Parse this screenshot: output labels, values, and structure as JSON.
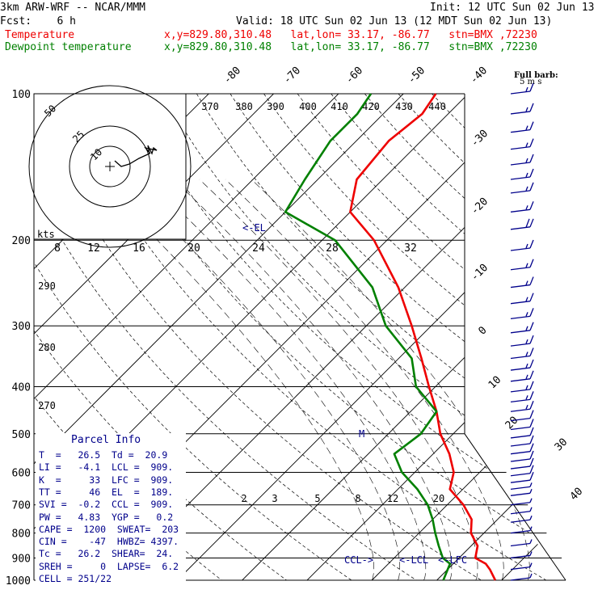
{
  "header": {
    "model": "3km ARW-WRF -- NCAR/MMM",
    "init": "Init: 12 UTC Sun 02 Jun 13",
    "fcst": "Fcst:    6 h",
    "valid": "Valid: 18 UTC Sun 02 Jun 13 (12 MDT Sun 02 Jun 13)",
    "temp_label": "Temperature",
    "dew_label": "Dewpoint temperature",
    "loc": "x,y=829.80,310.48   lat,lon= 33.17, -86.77   stn=BMX ,72230"
  },
  "colors": {
    "temperature": "#ee0000",
    "dewpoint": "#008000",
    "wind": "#00008b",
    "grid": "#000000"
  },
  "barb_legend": {
    "title": "Full barb:",
    "units": "5 m s"
  },
  "hodograph": {
    "units": "kts",
    "ring_labels": [
      "50",
      "25",
      "10"
    ]
  },
  "parcel_info": {
    "title": "Parcel Info",
    "rows": [
      "T  =   26.5  Td =  20.9",
      "LI =   -4.1  LCL =  909.",
      "K  =     33  LFC =  909.",
      "TT =     46  EL  =  189.",
      "SVI =  -0.2  CCL =  909.",
      "PW =   4.83  YGP =   0.2",
      "CAPE =  1200  SWEAT=  203",
      "CIN =    -47  HWBZ= 4397.",
      "Tc =   26.2  SHEAR=  24.",
      "SREH =     0  LAPSE=  6.2",
      "CELL = 251/22"
    ]
  },
  "chart_data": {
    "type": "line",
    "title": "",
    "y_axis": "pressure (hPa), log scale",
    "pressure_levels": [
      100,
      200,
      300,
      400,
      500,
      600,
      700,
      800,
      900,
      1000
    ],
    "ylim": [
      1000,
      100
    ],
    "isotherm_labels": [
      -80,
      -70,
      -60,
      -50,
      -40,
      -30,
      -20,
      -10,
      0,
      10,
      20,
      30,
      40
    ],
    "theta_labels": [
      370,
      380,
      390,
      400,
      410,
      420,
      430,
      440
    ],
    "theta_axis_labels": [
      290,
      280,
      270
    ],
    "hodograph_speed_labels": [
      8,
      12,
      16,
      20,
      24,
      28,
      32
    ],
    "mixing_ratio_labels": [
      2,
      3,
      5,
      8,
      12,
      20
    ],
    "annotations": [
      "<-EL",
      "CCL->",
      "<-LCL",
      "<-LFC",
      "M"
    ],
    "series": [
      {
        "name": "Temperature",
        "points": [
          [
            1000,
            29
          ],
          [
            950,
            26.5
          ],
          [
            925,
            25
          ],
          [
            900,
            22.5
          ],
          [
            850,
            21
          ],
          [
            800,
            18
          ],
          [
            750,
            16
          ],
          [
            700,
            12.5
          ],
          [
            650,
            8
          ],
          [
            600,
            6
          ],
          [
            550,
            2.5
          ],
          [
            500,
            -2
          ],
          [
            450,
            -6
          ],
          [
            400,
            -11
          ],
          [
            350,
            -16.5
          ],
          [
            300,
            -23
          ],
          [
            250,
            -31
          ],
          [
            200,
            -42
          ],
          [
            175,
            -50
          ],
          [
            150,
            -54
          ],
          [
            125,
            -55
          ],
          [
            110,
            -54
          ],
          [
            100,
            -55
          ]
        ]
      },
      {
        "name": "Dewpoint temperature",
        "points": [
          [
            1000,
            21
          ],
          [
            950,
            20
          ],
          [
            925,
            19.5
          ],
          [
            900,
            17.5
          ],
          [
            850,
            15
          ],
          [
            800,
            12.5
          ],
          [
            750,
            10
          ],
          [
            700,
            7
          ],
          [
            650,
            3
          ],
          [
            600,
            -2
          ],
          [
            550,
            -6
          ],
          [
            500,
            -5
          ],
          [
            450,
            -6
          ],
          [
            400,
            -13
          ],
          [
            350,
            -18
          ],
          [
            300,
            -27
          ],
          [
            250,
            -35
          ],
          [
            200,
            -48
          ],
          [
            175,
            -60
          ],
          [
            150,
            -62
          ],
          [
            125,
            -64
          ],
          [
            110,
            -64
          ],
          [
            100,
            -65
          ]
        ]
      }
    ],
    "wind_barbs_kt": [
      [
        100,
        15
      ],
      [
        110,
        15
      ],
      [
        120,
        15
      ],
      [
        130,
        15
      ],
      [
        140,
        15
      ],
      [
        150,
        15
      ],
      [
        160,
        15
      ],
      [
        175,
        15
      ],
      [
        190,
        20
      ],
      [
        210,
        15
      ],
      [
        230,
        15
      ],
      [
        250,
        15
      ],
      [
        270,
        15
      ],
      [
        290,
        15
      ],
      [
        310,
        15
      ],
      [
        330,
        15
      ],
      [
        350,
        15
      ],
      [
        370,
        15
      ],
      [
        390,
        15
      ],
      [
        410,
        15
      ],
      [
        430,
        15
      ],
      [
        450,
        15
      ],
      [
        470,
        10
      ],
      [
        490,
        10
      ],
      [
        510,
        10
      ],
      [
        530,
        10
      ],
      [
        550,
        10
      ],
      [
        570,
        10
      ],
      [
        590,
        10
      ],
      [
        610,
        10
      ],
      [
        630,
        10
      ],
      [
        650,
        5
      ],
      [
        670,
        5
      ],
      [
        700,
        5
      ],
      [
        730,
        5
      ],
      [
        760,
        5
      ],
      [
        800,
        5
      ],
      [
        850,
        5
      ],
      [
        900,
        5
      ],
      [
        950,
        5
      ],
      [
        1000,
        5
      ]
    ]
  }
}
